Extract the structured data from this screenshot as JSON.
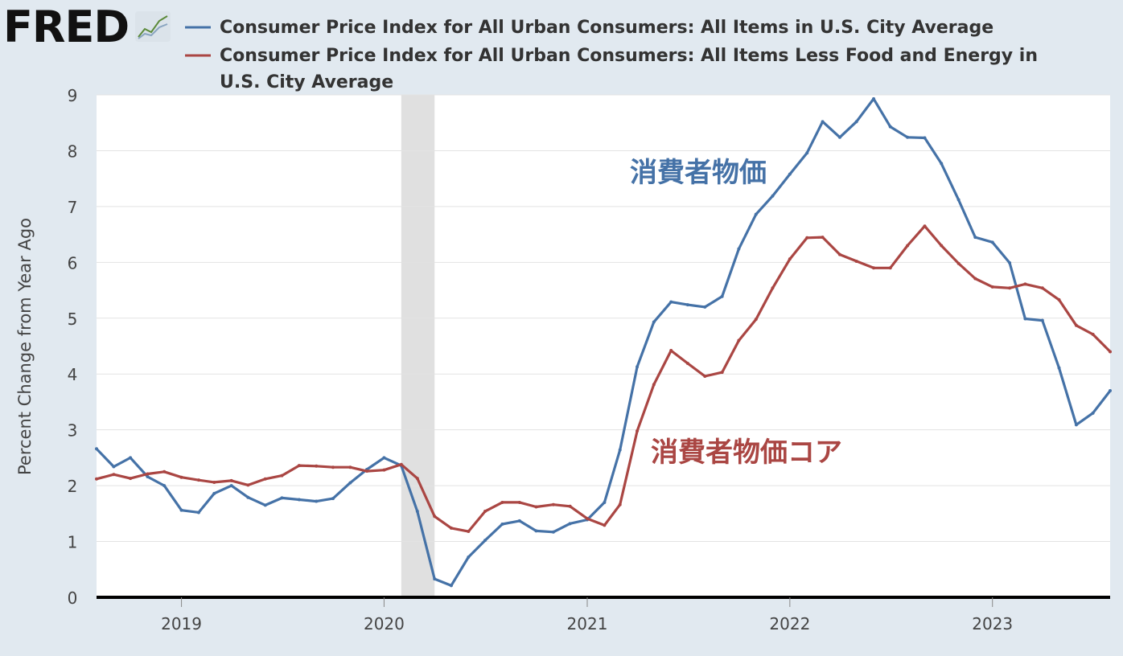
{
  "brand": {
    "name": "FRED",
    "icon": "line-graph-icon"
  },
  "chart_data": {
    "type": "line",
    "title": "",
    "xlabel": "",
    "ylabel": "Percent Change from Year Ago",
    "ylim": [
      0,
      9
    ],
    "xlim": [
      "2018-08-01",
      "2023-08-01"
    ],
    "yticks": [
      "0",
      "1",
      "2",
      "3",
      "4",
      "5",
      "6",
      "7",
      "8",
      "9"
    ],
    "xticks": [
      {
        "date": "2019-01-01",
        "label": "2019"
      },
      {
        "date": "2020-01-01",
        "label": "2020"
      },
      {
        "date": "2021-01-01",
        "label": "2021"
      },
      {
        "date": "2022-01-01",
        "label": "2022"
      },
      {
        "date": "2023-01-01",
        "label": "2023"
      }
    ],
    "grid": true,
    "legend_position": "top",
    "recession": {
      "start": "2020-02-01",
      "end": "2020-04-01",
      "color": "#e0e0e0"
    },
    "series": [
      {
        "name": "Consumer Price Index for All Urban Consumers: All Items in U.S. City Average",
        "color": "#4572a7",
        "annotation": "消費者物価",
        "x": [
          "2018-08-01",
          "2018-09-01",
          "2018-10-01",
          "2018-11-01",
          "2018-12-01",
          "2019-01-01",
          "2019-02-01",
          "2019-03-01",
          "2019-04-01",
          "2019-05-01",
          "2019-06-01",
          "2019-07-01",
          "2019-08-01",
          "2019-09-01",
          "2019-10-01",
          "2019-11-01",
          "2019-12-01",
          "2020-01-01",
          "2020-02-01",
          "2020-03-01",
          "2020-04-01",
          "2020-05-01",
          "2020-06-01",
          "2020-07-01",
          "2020-08-01",
          "2020-09-01",
          "2020-10-01",
          "2020-11-01",
          "2020-12-01",
          "2021-01-01",
          "2021-02-01",
          "2021-03-01",
          "2021-04-01",
          "2021-05-01",
          "2021-06-01",
          "2021-07-01",
          "2021-08-01",
          "2021-09-01",
          "2021-10-01",
          "2021-11-01",
          "2021-12-01",
          "2022-01-01",
          "2022-02-01",
          "2022-03-01",
          "2022-04-01",
          "2022-05-01",
          "2022-06-01",
          "2022-07-01",
          "2022-08-01",
          "2022-09-01",
          "2022-10-01",
          "2022-11-01",
          "2022-12-01",
          "2023-01-01",
          "2023-02-01",
          "2023-03-01",
          "2023-04-01",
          "2023-05-01",
          "2023-06-01",
          "2023-07-01",
          "2023-08-01"
        ],
        "values": [
          2.66,
          2.34,
          2.5,
          2.16,
          2.0,
          1.56,
          1.52,
          1.86,
          2.0,
          1.79,
          1.65,
          1.78,
          1.75,
          1.72,
          1.77,
          2.05,
          2.29,
          2.5,
          2.36,
          1.54,
          0.33,
          0.21,
          0.72,
          1.02,
          1.31,
          1.37,
          1.19,
          1.17,
          1.32,
          1.39,
          1.7,
          2.64,
          4.13,
          4.93,
          5.29,
          5.24,
          5.2,
          5.39,
          6.24,
          6.86,
          7.19,
          7.58,
          7.96,
          8.52,
          8.24,
          8.52,
          8.93,
          8.43,
          8.24,
          8.23,
          7.77,
          7.12,
          6.45,
          6.36,
          5.99,
          4.99,
          4.96,
          4.11,
          3.09,
          3.3,
          3.7
        ]
      },
      {
        "name": "Consumer Price Index for All Urban Consumers: All Items Less Food and Energy in U.S. City Average",
        "color": "#aa4643",
        "annotation": "消費者物価コア",
        "x": [
          "2018-08-01",
          "2018-09-01",
          "2018-10-01",
          "2018-11-01",
          "2018-12-01",
          "2019-01-01",
          "2019-02-01",
          "2019-03-01",
          "2019-04-01",
          "2019-05-01",
          "2019-06-01",
          "2019-07-01",
          "2019-08-01",
          "2019-09-01",
          "2019-10-01",
          "2019-11-01",
          "2019-12-01",
          "2020-01-01",
          "2020-02-01",
          "2020-03-01",
          "2020-04-01",
          "2020-05-01",
          "2020-06-01",
          "2020-07-01",
          "2020-08-01",
          "2020-09-01",
          "2020-10-01",
          "2020-11-01",
          "2020-12-01",
          "2021-01-01",
          "2021-02-01",
          "2021-03-01",
          "2021-04-01",
          "2021-05-01",
          "2021-06-01",
          "2021-07-01",
          "2021-08-01",
          "2021-09-01",
          "2021-10-01",
          "2021-11-01",
          "2021-12-01",
          "2022-01-01",
          "2022-02-01",
          "2022-03-01",
          "2022-04-01",
          "2022-05-01",
          "2022-06-01",
          "2022-07-01",
          "2022-08-01",
          "2022-09-01",
          "2022-10-01",
          "2022-11-01",
          "2022-12-01",
          "2023-01-01",
          "2023-02-01",
          "2023-03-01",
          "2023-04-01",
          "2023-05-01",
          "2023-06-01",
          "2023-07-01",
          "2023-08-01"
        ],
        "values": [
          2.12,
          2.2,
          2.13,
          2.21,
          2.25,
          2.15,
          2.1,
          2.06,
          2.09,
          2.01,
          2.12,
          2.18,
          2.36,
          2.35,
          2.33,
          2.33,
          2.26,
          2.28,
          2.38,
          2.13,
          1.45,
          1.24,
          1.18,
          1.54,
          1.7,
          1.7,
          1.62,
          1.66,
          1.63,
          1.41,
          1.29,
          1.66,
          2.98,
          3.81,
          4.42,
          4.19,
          3.96,
          4.03,
          4.6,
          4.98,
          5.54,
          6.06,
          6.44,
          6.45,
          6.14,
          6.02,
          5.9,
          5.9,
          6.3,
          6.65,
          6.3,
          5.98,
          5.71,
          5.56,
          5.54,
          5.61,
          5.54,
          5.33,
          4.87,
          4.71,
          4.4
        ]
      }
    ]
  }
}
